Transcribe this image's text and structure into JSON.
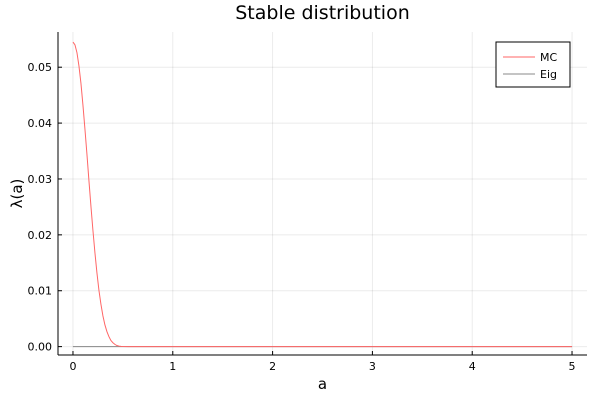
{
  "chart_data": {
    "type": "line",
    "title": "Stable distribution",
    "xlabel": "a",
    "ylabel": "λ(a)",
    "xlim": [
      -0.15,
      5.15
    ],
    "ylim": [
      -0.0015,
      0.0563
    ],
    "xticks": [
      0,
      1,
      2,
      3,
      4,
      5
    ],
    "xtick_labels": [
      "0",
      "1",
      "2",
      "3",
      "4",
      "5"
    ],
    "yticks": [
      0.0,
      0.01,
      0.02,
      0.03,
      0.04,
      0.05
    ],
    "ytick_labels": [
      "0.00",
      "0.01",
      "0.02",
      "0.03",
      "0.04",
      "0.05"
    ],
    "grid": true,
    "legend_position": "top-right",
    "series": [
      {
        "name": "MC",
        "color": "#ff6666",
        "x": [
          0.0,
          0.02,
          0.04,
          0.06,
          0.08,
          0.1,
          0.12,
          0.14,
          0.16,
          0.18,
          0.2,
          0.22,
          0.24,
          0.26,
          0.28,
          0.3,
          0.32,
          0.34,
          0.36,
          0.38,
          0.4,
          0.42,
          0.44,
          0.46,
          0.48,
          0.5,
          0.55,
          0.6,
          0.8,
          1.0,
          2.0,
          3.0,
          4.0,
          5.0
        ],
        "y": [
          0.0545,
          0.054,
          0.0526,
          0.0502,
          0.0471,
          0.0432,
          0.0389,
          0.0344,
          0.0297,
          0.0251,
          0.0208,
          0.0168,
          0.0132,
          0.0101,
          0.0076,
          0.0055,
          0.0039,
          0.0027,
          0.0018,
          0.0011,
          0.0007,
          0.0004,
          0.0002,
          0.0001,
          5e-05,
          2e-05,
          0.0,
          0.0,
          0.0,
          0.0,
          0.0,
          0.0,
          0.0,
          0.0
        ]
      },
      {
        "name": "Eig",
        "color": "#888888",
        "x": [
          0.0,
          5.0
        ],
        "y": [
          0.0,
          0.0
        ]
      }
    ]
  }
}
